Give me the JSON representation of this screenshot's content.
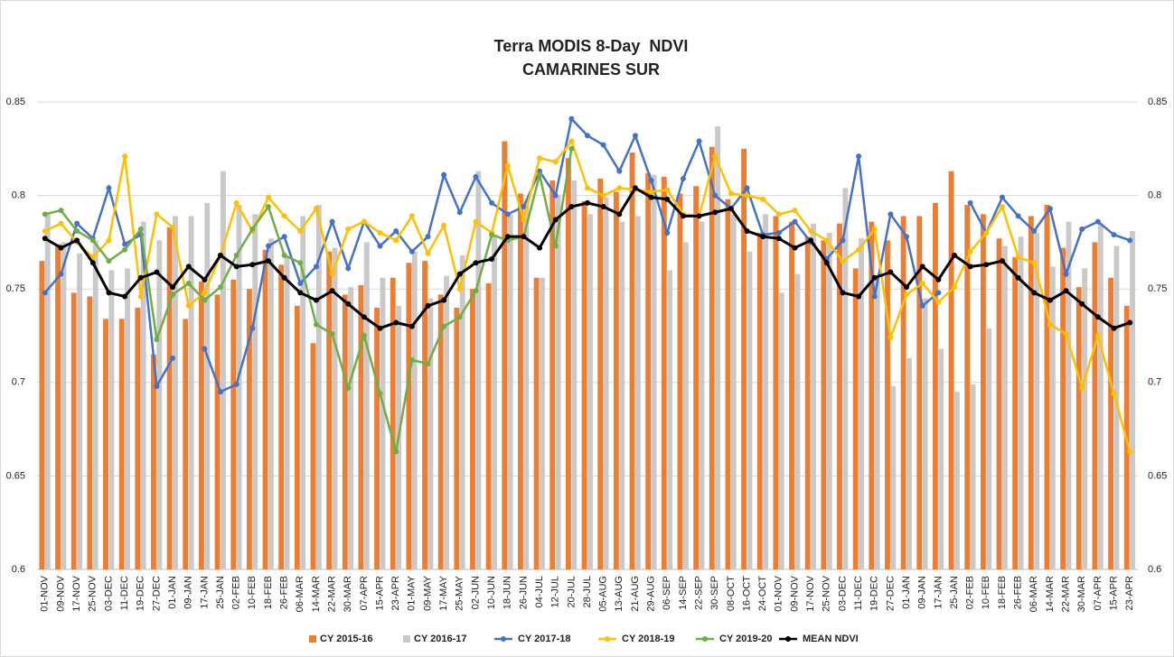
{
  "chart_data": {
    "type": "bar-line",
    "title": "Terra MODIS 8-Day  NDVI",
    "subtitle": "CAMARINES SUR",
    "categories": [
      "01-NOV",
      "09-NOV",
      "17-NOV",
      "25-NOV",
      "03-DEC",
      "11-DEC",
      "19-DEC",
      "27-DEC",
      "01-JAN",
      "09-JAN",
      "17-JAN",
      "25-JAN",
      "02-FEB",
      "10-FEB",
      "18-FEB",
      "26-FEB",
      "06-MAR",
      "14-MAR",
      "22-MAR",
      "30-MAR",
      "07-APR",
      "15-APR",
      "23-APR",
      "01-MAY",
      "09-MAY",
      "17-MAY",
      "25-MAY",
      "02-JUN",
      "10-JUN",
      "18-JUN",
      "26-JUN",
      "04-JUL",
      "12-JUL",
      "20-JUL",
      "28-JUL",
      "05-AUG",
      "13-AUG",
      "21-AUG",
      "29-AUG",
      "06-SEP",
      "14-SEP",
      "22-SEP",
      "30-SEP",
      "08-OCT",
      "16-OCT",
      "24-OCT",
      "01-NOV",
      "09-NOV",
      "17-NOV",
      "25-NOV",
      "03-DEC",
      "11-DEC",
      "19-DEC",
      "27-DEC",
      "01-JAN",
      "09-JAN",
      "17-JAN",
      "25-JAN",
      "02-FEB",
      "10-FEB",
      "18-FEB",
      "26-FEB",
      "06-MAR",
      "14-MAR",
      "22-MAR",
      "30-MAR",
      "07-APR",
      "15-APR",
      "23-APR"
    ],
    "ylim": [
      0.6,
      0.85
    ],
    "yticks": [
      0.6,
      0.65,
      0.7,
      0.75,
      0.8,
      0.85
    ],
    "grid": true,
    "legend": "bottom",
    "series": [
      {
        "name": "CY 2015-16",
        "kind": "bar",
        "color": "#ed7d31",
        "values": [
          0.765,
          0.774,
          0.748,
          0.746,
          0.734,
          0.734,
          0.74,
          0.715,
          0.783,
          0.734,
          0.754,
          0.747,
          0.755,
          0.75,
          0.771,
          0.763,
          0.741,
          0.721,
          0.77,
          0.747,
          0.752,
          0.74,
          0.756,
          0.764,
          0.765,
          0.747,
          0.74,
          0.75,
          0.753,
          0.829,
          0.801,
          0.756,
          0.808,
          0.82,
          0.797,
          0.809,
          0.802,
          0.823,
          0.812,
          0.81,
          0.801,
          0.805,
          0.826,
          0.798,
          0.825,
          0.78,
          0.789,
          0.786,
          0.778,
          0.776,
          0.785,
          0.761,
          0.786,
          0.776,
          0.789,
          0.789,
          0.796,
          0.813,
          0.795,
          0.79,
          0.777,
          0.767,
          0.789,
          0.795,
          0.772,
          0.751,
          0.775,
          0.756,
          0.741
        ]
      },
      {
        "name": "CY 2016-17",
        "kind": "bar",
        "color": "#c9c9c9",
        "values": [
          0.79,
          0.775,
          0.769,
          0.776,
          0.76,
          0.761,
          0.786,
          0.776,
          0.789,
          0.789,
          0.796,
          0.813,
          0.795,
          0.79,
          0.777,
          0.767,
          0.789,
          0.795,
          0.772,
          0.751,
          0.775,
          0.756,
          0.741,
          0.77,
          0.745,
          0.757,
          0.768,
          0.813,
          0.779,
          0.79,
          0.797,
          0.756,
          0.8,
          0.808,
          0.79,
          0.799,
          0.786,
          0.789,
          0.811,
          0.76,
          0.775,
          0.786,
          0.837,
          0.79,
          0.77,
          0.79,
          0.748,
          0.758,
          0.785,
          0.78,
          0.804,
          0.777,
          0.755,
          0.698,
          0.713,
          0.745,
          0.718,
          0.695,
          0.699,
          0.729,
          0.773,
          0.778,
          0.78,
          0.762,
          0.786,
          0.761,
          0.785,
          0.773,
          0.781
        ]
      },
      {
        "name": "CY 2017-18",
        "kind": "line",
        "color": "#4472c4",
        "values": [
          0.748,
          0.758,
          0.785,
          0.777,
          0.804,
          0.774,
          0.779,
          0.698,
          0.713,
          null,
          0.718,
          0.695,
          0.699,
          0.729,
          0.773,
          0.778,
          0.753,
          0.762,
          0.786,
          0.761,
          0.786,
          0.773,
          0.781,
          0.77,
          0.778,
          0.811,
          0.791,
          0.81,
          0.796,
          0.79,
          0.794,
          0.813,
          0.8,
          0.841,
          0.832,
          0.827,
          0.813,
          0.832,
          0.808,
          0.78,
          0.809,
          0.829,
          0.8,
          0.793,
          0.804,
          0.779,
          0.78,
          0.786,
          0.775,
          0.766,
          0.776,
          0.821,
          0.746,
          0.79,
          0.778,
          0.741,
          0.748,
          null,
          0.796,
          0.78,
          0.799,
          0.789,
          0.781,
          0.793,
          0.758,
          0.782,
          0.786,
          0.779,
          0.776
        ]
      },
      {
        "name": "CY 2018-19",
        "kind": "line",
        "color": "#ffc000",
        "values": [
          0.781,
          0.785,
          0.775,
          0.767,
          0.776,
          0.821,
          0.746,
          0.79,
          0.783,
          0.741,
          0.748,
          0.768,
          0.796,
          0.781,
          0.799,
          0.789,
          0.781,
          0.793,
          0.758,
          0.782,
          0.786,
          0.78,
          0.776,
          0.789,
          0.769,
          0.784,
          0.75,
          0.786,
          0.78,
          0.816,
          0.787,
          0.82,
          0.818,
          0.829,
          0.804,
          0.8,
          0.804,
          0.803,
          0.802,
          0.803,
          0.79,
          0.789,
          0.821,
          0.801,
          0.8,
          0.798,
          0.79,
          0.792,
          0.781,
          0.776,
          0.765,
          0.771,
          0.782,
          0.724,
          0.747,
          0.753,
          0.743,
          0.751,
          0.77,
          0.78,
          0.794,
          0.767,
          0.764,
          0.731,
          0.726,
          0.697,
          0.725,
          0.694,
          0.663
        ]
      },
      {
        "name": "CY 2019-20",
        "kind": "line",
        "color": "#70ad47",
        "values": [
          0.79,
          0.792,
          0.781,
          0.776,
          0.765,
          0.771,
          0.782,
          0.723,
          0.747,
          0.753,
          0.744,
          0.751,
          0.768,
          0.782,
          0.794,
          0.768,
          0.764,
          0.731,
          0.726,
          0.697,
          0.725,
          0.694,
          0.663,
          0.712,
          0.71,
          0.73,
          0.735,
          0.749,
          0.779,
          0.776,
          0.778,
          0.811,
          0.773,
          0.825,
          null,
          null,
          null,
          null,
          null,
          null,
          null,
          null,
          null,
          null,
          null,
          null,
          null,
          null,
          null,
          null,
          null,
          null,
          null,
          null,
          null,
          null,
          null,
          null,
          null,
          null,
          null,
          null,
          null,
          null,
          null,
          null,
          null,
          null,
          null
        ]
      },
      {
        "name": "MEAN NDVI",
        "kind": "line",
        "color": "#000000",
        "values": [
          0.777,
          0.772,
          0.776,
          0.764,
          0.748,
          0.746,
          0.756,
          0.759,
          0.751,
          0.762,
          0.755,
          0.768,
          0.762,
          0.763,
          0.765,
          0.756,
          0.748,
          0.744,
          0.749,
          0.742,
          0.735,
          0.729,
          0.732,
          0.73,
          0.741,
          0.744,
          0.758,
          0.764,
          0.766,
          0.778,
          0.778,
          0.772,
          0.787,
          0.794,
          0.796,
          0.794,
          0.79,
          0.804,
          0.799,
          0.798,
          0.789,
          0.789,
          0.791,
          0.793,
          0.781,
          0.778,
          0.777,
          0.772,
          0.776,
          0.764,
          0.748,
          0.746,
          0.756,
          0.759,
          0.751,
          0.762,
          0.755,
          0.768,
          0.762,
          0.763,
          0.765,
          0.756,
          0.748,
          0.744,
          0.749,
          0.742,
          0.735,
          0.729,
          0.732
        ]
      }
    ]
  }
}
